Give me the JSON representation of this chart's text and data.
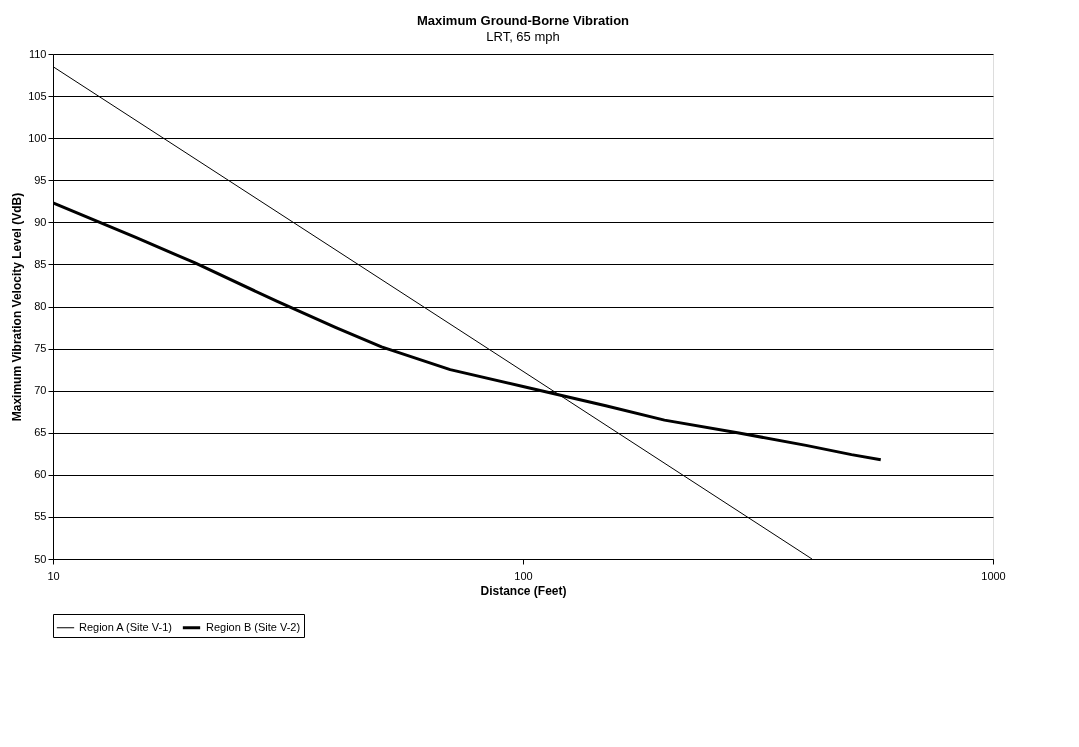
{
  "chart_data": {
    "type": "line",
    "title": "Maximum Ground-Borne Vibration",
    "subtitle": "LRT, 65 mph",
    "xlabel": "Distance (Feet)",
    "ylabel": "Maximum Vibration Velocity Level (VdB)",
    "log": "x",
    "xlim": [
      10,
      1000
    ],
    "xticks": [
      10,
      100,
      1000
    ],
    "ylim": [
      50,
      110
    ],
    "yticks": [
      50,
      55,
      60,
      65,
      70,
      75,
      80,
      85,
      90,
      95,
      100,
      105,
      110
    ],
    "grid": "y",
    "legend": "bottom",
    "marker": "none",
    "line_style": "solid",
    "series": [
      {
        "name": "Region A (Site V-1)",
        "color": "#000000",
        "x": [
          10,
          100,
          412
        ],
        "values": [
          108.5,
          72.3,
          50
        ]
      },
      {
        "name": "Region B (Site V-2)",
        "color": "#000000",
        "x": [
          10,
          15,
          20,
          30,
          40,
          50,
          70,
          100,
          150,
          200,
          286,
          400,
          500,
          577
        ],
        "values": [
          92.3,
          88.2,
          85.2,
          80.6,
          77.5,
          75.2,
          72.5,
          70.5,
          68.2,
          66.5,
          65,
          63.5,
          62.4,
          61.8
        ]
      }
    ]
  }
}
